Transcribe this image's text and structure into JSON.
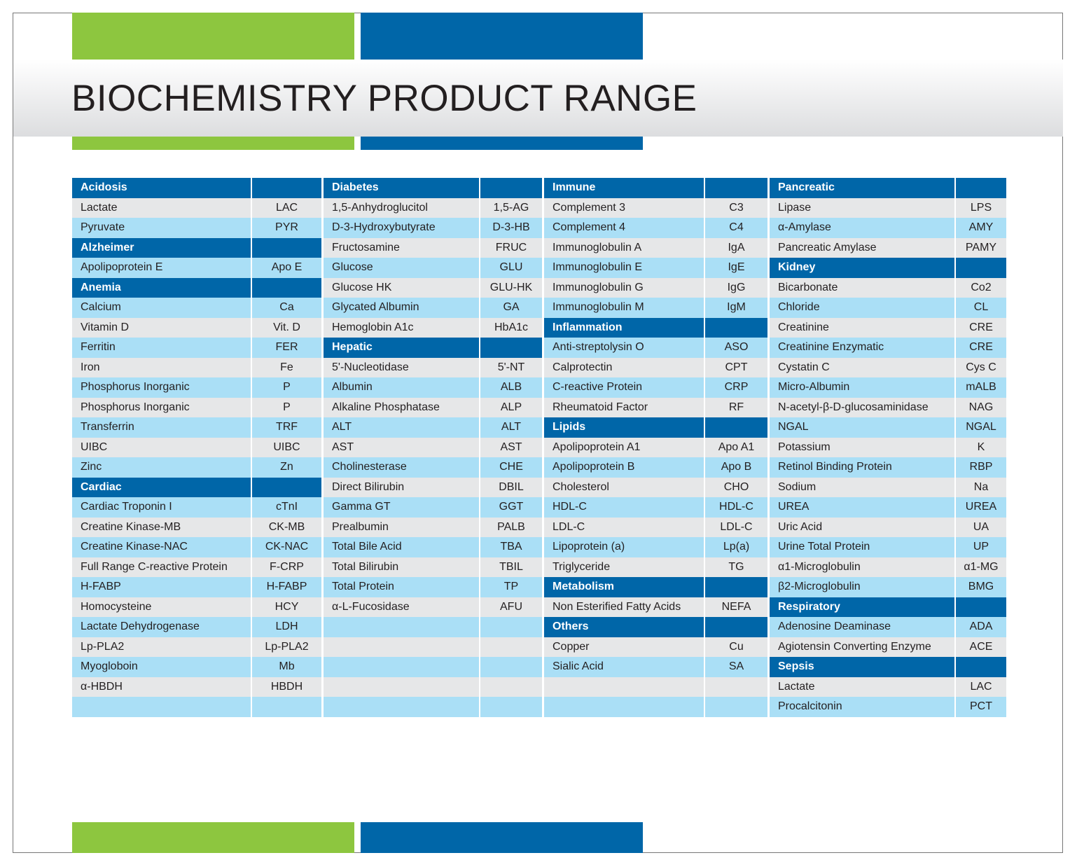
{
  "title": "BIOCHEMISTRY PRODUCT RANGE",
  "columns": [
    {
      "rows": [
        [
          "Acidosis"
        ],
        [
          "Lactate",
          "LAC"
        ],
        [
          "Pyruvate",
          "PYR"
        ],
        [
          "Alzheimer"
        ],
        [
          "Apolipoprotein E",
          "Apo E"
        ],
        [
          "Anemia"
        ],
        [
          "Calcium",
          "Ca"
        ],
        [
          "Vitamin D",
          "Vit. D"
        ],
        [
          "Ferritin",
          "FER"
        ],
        [
          "Iron",
          "Fe"
        ],
        [
          "Phosphorus Inorganic",
          "P"
        ],
        [
          "Phosphorus Inorganic",
          "P"
        ],
        [
          "Transferrin",
          "TRF"
        ],
        [
          "UIBC",
          "UIBC"
        ],
        [
          "Zinc",
          "Zn"
        ],
        [
          "Cardiac"
        ],
        [
          "Cardiac Troponin I",
          "cTnI"
        ],
        [
          "Creatine Kinase-MB",
          "CK-MB"
        ],
        [
          "Creatine Kinase-NAC",
          "CK-NAC"
        ],
        [
          "Full Range C-reactive Protein",
          "F-CRP"
        ],
        [
          "H-FABP",
          "H-FABP"
        ],
        [
          "Homocysteine",
          "HCY"
        ],
        [
          "Lactate Dehydrogenase",
          "LDH"
        ],
        [
          "Lp-PLA2",
          "Lp-PLA2"
        ],
        [
          "Myogloboin",
          "Mb"
        ],
        [
          "α-HBDH",
          "HBDH"
        ]
      ]
    },
    {
      "rows": [
        [
          "Diabetes"
        ],
        [
          "1,5-Anhydroglucitol",
          "1,5-AG"
        ],
        [
          "D-3-Hydroxybutyrate",
          "D-3-HB"
        ],
        [
          "Fructosamine",
          "FRUC"
        ],
        [
          "Glucose",
          "GLU"
        ],
        [
          "Glucose HK",
          "GLU-HK"
        ],
        [
          "Glycated Albumin",
          "GA"
        ],
        [
          "Hemoglobin A1c",
          "HbA1c"
        ],
        [
          "Hepatic"
        ],
        [
          "5'-Nucleotidase",
          "5'-NT"
        ],
        [
          "Albumin",
          "ALB"
        ],
        [
          "Alkaline Phosphatase",
          "ALP"
        ],
        [
          "ALT",
          "ALT"
        ],
        [
          "AST",
          "AST"
        ],
        [
          "Cholinesterase",
          "CHE"
        ],
        [
          "Direct Bilirubin",
          "DBIL"
        ],
        [
          "Gamma GT",
          "GGT"
        ],
        [
          "Prealbumin",
          "PALB"
        ],
        [
          "Total Bile Acid",
          "TBA"
        ],
        [
          "Total Bilirubin",
          "TBIL"
        ],
        [
          "Total Protein",
          "TP"
        ],
        [
          "α-L-Fucosidase",
          "AFU"
        ]
      ]
    },
    {
      "rows": [
        [
          "Immune"
        ],
        [
          "Complement 3",
          "C3"
        ],
        [
          "Complement 4",
          "C4"
        ],
        [
          "Immunoglobulin A",
          "IgA"
        ],
        [
          "Immunoglobulin E",
          "IgE"
        ],
        [
          "Immunoglobulin G",
          "IgG"
        ],
        [
          "Immunoglobulin M",
          "IgM"
        ],
        [
          "Inflammation"
        ],
        [
          "Anti-streptolysin O",
          "ASO"
        ],
        [
          "Calprotectin",
          "CPT"
        ],
        [
          "C-reactive Protein",
          "CRP"
        ],
        [
          "Rheumatoid Factor",
          "RF"
        ],
        [
          "Lipids"
        ],
        [
          "Apolipoprotein A1",
          "Apo A1"
        ],
        [
          "Apolipoprotein B",
          "Apo B"
        ],
        [
          "Cholesterol",
          "CHO"
        ],
        [
          "HDL-C",
          "HDL-C"
        ],
        [
          "LDL-C",
          "LDL-C"
        ],
        [
          "Lipoprotein (a)",
          "Lp(a)"
        ],
        [
          "Triglyceride",
          "TG"
        ],
        [
          "Metabolism"
        ],
        [
          "Non Esterified Fatty Acids",
          "NEFA"
        ],
        [
          "Others"
        ],
        [
          "Copper",
          "Cu"
        ],
        [
          "Sialic Acid",
          "SA"
        ]
      ]
    },
    {
      "rows": [
        [
          "Pancreatic"
        ],
        [
          "Lipase",
          "LPS"
        ],
        [
          "α-Amylase",
          "AMY"
        ],
        [
          "Pancreatic Amylase",
          "PAMY"
        ],
        [
          "Kidney"
        ],
        [
          "Bicarbonate",
          "Co2"
        ],
        [
          "Chloride",
          "CL"
        ],
        [
          "Creatinine",
          "CRE"
        ],
        [
          "Creatinine Enzymatic",
          "CRE"
        ],
        [
          "Cystatin C",
          "Cys C"
        ],
        [
          "Micro-Albumin",
          "mALB"
        ],
        [
          "N-acetyl-β-D-glucosaminidase",
          "NAG"
        ],
        [
          "NGAL",
          "NGAL"
        ],
        [
          "Potassium",
          "K"
        ],
        [
          "Retinol Binding Protein",
          "RBP"
        ],
        [
          "Sodium",
          "Na"
        ],
        [
          "UREA",
          "UREA"
        ],
        [
          "Uric Acid",
          "UA"
        ],
        [
          "Urine Total Protein",
          "UP"
        ],
        [
          "α1-Microglobulin",
          "α1-MG"
        ],
        [
          "β2-Microglobulin",
          "BMG"
        ],
        [
          "Respiratory"
        ],
        [
          "Adenosine Deaminase",
          "ADA"
        ],
        [
          "Agiotensin Converting Enzyme",
          "ACE"
        ],
        [
          "Sepsis"
        ],
        [
          "Lactate",
          "LAC"
        ],
        [
          "Procalcitonin",
          "PCT"
        ]
      ]
    }
  ]
}
